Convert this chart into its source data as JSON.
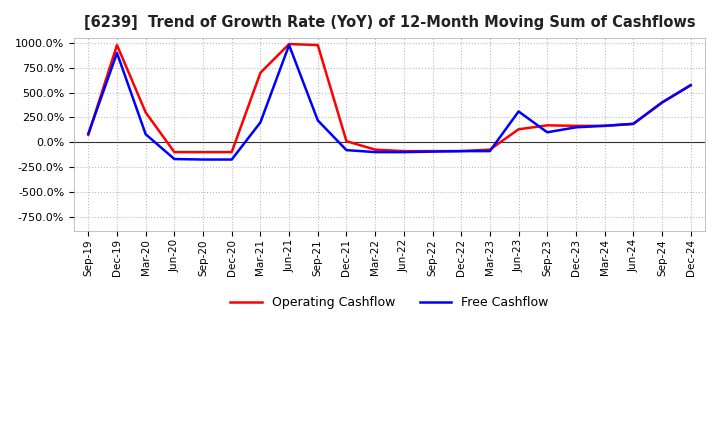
{
  "title": "[6239]  Trend of Growth Rate (YoY) of 12-Month Moving Sum of Cashflows",
  "ylim": [
    -900,
    1050
  ],
  "yticks": [
    -750,
    -500,
    -250,
    0,
    250,
    500,
    750,
    1000
  ],
  "legend_labels": [
    "Operating Cashflow",
    "Free Cashflow"
  ],
  "line_colors": [
    "#ff0000",
    "#0000ff"
  ],
  "background_color": "#ffffff",
  "grid_color": "#bbbbbb",
  "x_labels": [
    "Sep-19",
    "Dec-19",
    "Mar-20",
    "Jun-20",
    "Sep-20",
    "Dec-20",
    "Mar-21",
    "Jun-21",
    "Sep-21",
    "Dec-21",
    "Mar-22",
    "Jun-22",
    "Sep-22",
    "Dec-22",
    "Mar-23",
    "Jun-23",
    "Sep-23",
    "Dec-23",
    "Mar-24",
    "Jun-24",
    "Sep-24",
    "Dec-24"
  ],
  "operating_cashflow": [
    75,
    980,
    300,
    -100,
    -100,
    -100,
    700,
    990,
    980,
    10,
    -75,
    -90,
    -90,
    -90,
    -75,
    130,
    170,
    165,
    165,
    185,
    400,
    575
  ],
  "free_cashflow": [
    85,
    900,
    80,
    -170,
    -175,
    -175,
    200,
    980,
    220,
    -80,
    -100,
    -100,
    -95,
    -90,
    -90,
    310,
    100,
    150,
    165,
    185,
    400,
    575
  ]
}
